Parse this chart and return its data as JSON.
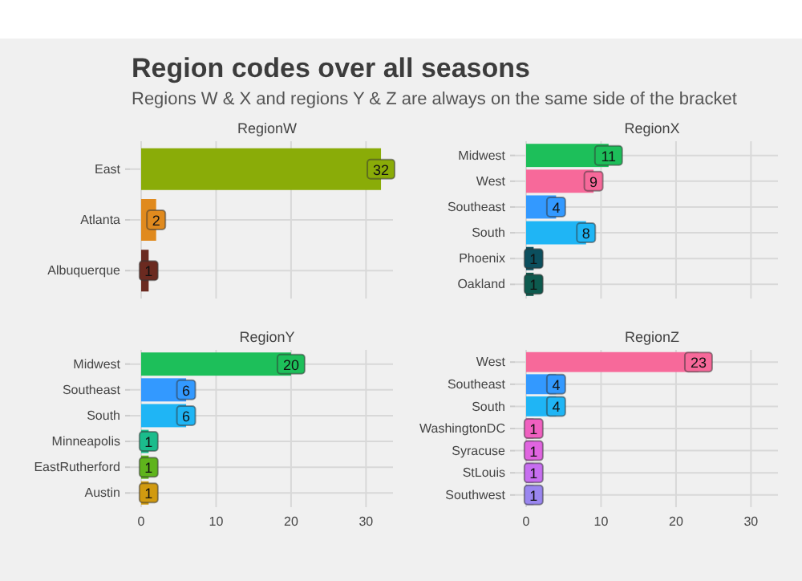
{
  "chart_data": [
    {
      "type": "bar",
      "orientation": "horizontal",
      "title": "RegionW",
      "annotations": [
        "Region codes over all seasons",
        "Regions W & X and regions Y & Z are always on the same side of the bracket"
      ],
      "categories": [
        "East",
        "Atlanta",
        "Albuquerque"
      ],
      "values": [
        32,
        2,
        1
      ],
      "colors": [
        "#8aac08",
        "#e08a1e",
        "#6b2a20"
      ],
      "xlim": [
        -1.5,
        33.6
      ],
      "xticks": [
        0,
        10,
        20,
        30
      ],
      "tick_labels": "y",
      "grid": true,
      "data_labels": true
    },
    {
      "type": "bar",
      "orientation": "horizontal",
      "title": "RegionX",
      "categories": [
        "Midwest",
        "West",
        "Southeast",
        "South",
        "Phoenix",
        "Oakland"
      ],
      "values": [
        11,
        9,
        4,
        8,
        1,
        1
      ],
      "colors": [
        "#1dbf5a",
        "#f7699a",
        "#3399ff",
        "#1fb5f5",
        "#0b4f5e",
        "#0d5a4e"
      ],
      "xlim": [
        -1.5,
        33.6
      ],
      "xticks": [
        0,
        10,
        20,
        30
      ],
      "tick_labels": "y",
      "grid": true,
      "data_labels": true
    },
    {
      "type": "bar",
      "orientation": "horizontal",
      "title": "RegionY",
      "categories": [
        "Midwest",
        "Southeast",
        "South",
        "Minneapolis",
        "EastRutherford",
        "Austin"
      ],
      "values": [
        20,
        6,
        6,
        1,
        1,
        1
      ],
      "colors": [
        "#1dbf5a",
        "#3399ff",
        "#1fb5f5",
        "#1bbc8c",
        "#5fb41c",
        "#d19a10"
      ],
      "xlim": [
        -1.5,
        33.6
      ],
      "xticks": [
        0,
        10,
        20,
        30
      ],
      "grid": true,
      "data_labels": true
    },
    {
      "type": "bar",
      "orientation": "horizontal",
      "title": "RegionZ",
      "categories": [
        "West",
        "Southeast",
        "South",
        "WashingtonDC",
        "Syracuse",
        "StLouis",
        "Southwest"
      ],
      "values": [
        23,
        4,
        4,
        1,
        1,
        1,
        1
      ],
      "colors": [
        "#f7699a",
        "#3399ff",
        "#1fb5f5",
        "#f060c0",
        "#e064e0",
        "#c76ef0",
        "#9a86f0"
      ],
      "xlim": [
        -1.5,
        33.6
      ],
      "xticks": [
        0,
        10,
        20,
        30
      ],
      "grid": true,
      "data_labels": true
    }
  ]
}
